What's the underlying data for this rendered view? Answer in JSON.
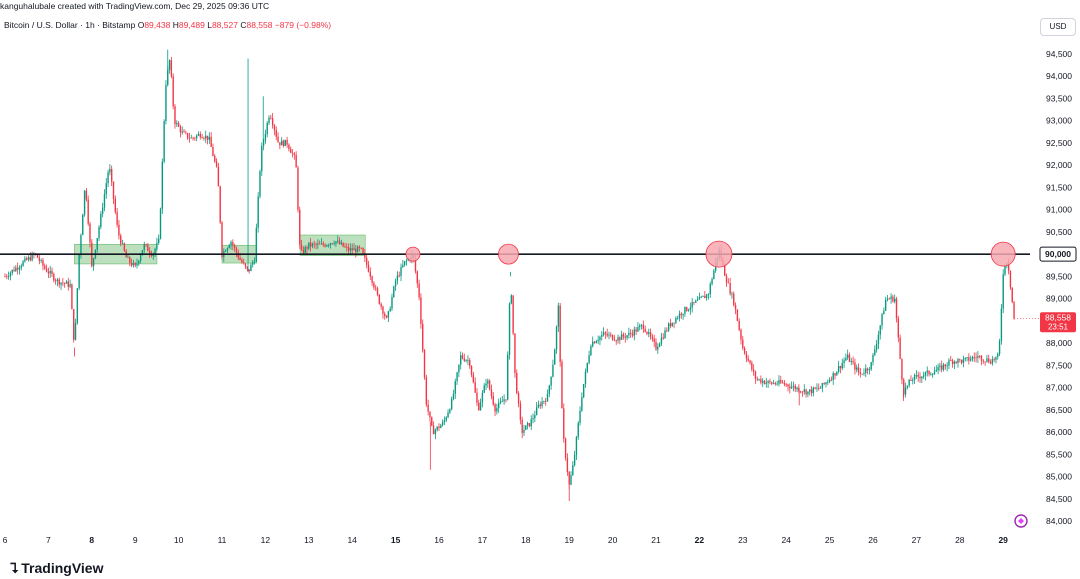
{
  "header": {
    "attribution": "kanguhalubale created with TradingView.com, Dec 29, 2025 09:36 UTC"
  },
  "symbol": {
    "name": "Bitcoin / U.S. Dollar · 1h · Bitstamp",
    "o_label": "O",
    "o_value": "89,438",
    "h_label": "H",
    "h_value": "89,489",
    "l_label": "L",
    "l_value": "88,527",
    "c_label": "C",
    "c_value": "88,558",
    "change": "−879 (−0.98%)"
  },
  "currency": "USD",
  "last_price": {
    "value": "88,558",
    "countdown": "23:51"
  },
  "level_label": "90,000",
  "logo_text": "TradingView",
  "colors": {
    "up": "#089981",
    "down": "#f23645",
    "level_line": "#131722",
    "marker_fill": "#f7a8b0",
    "marker_stroke": "#f23645",
    "zone_fill": "#a5d6a7",
    "zone_stroke": "#66bb6a",
    "axis_text": "#131722",
    "grid": "#f0f3fa",
    "price_tag": "#f23645",
    "level_tag_bg": "#ffffff"
  },
  "chart_data": {
    "type": "candlestick",
    "title": "Bitcoin / U.S. Dollar · 1h · Bitstamp",
    "y_ticks": [
      "94,500",
      "94,000",
      "93,500",
      "93,000",
      "92,500",
      "92,000",
      "91,500",
      "91,000",
      "90,500",
      "90,000",
      "89,500",
      "89,000",
      "88,500",
      "88,000",
      "87,500",
      "87,000",
      "86,500",
      "86,000",
      "85,500",
      "85,000",
      "84,500",
      "84,000"
    ],
    "x_ticks": [
      {
        "label": "6",
        "bold": false
      },
      {
        "label": "7",
        "bold": false
      },
      {
        "label": "8",
        "bold": true
      },
      {
        "label": "9",
        "bold": false
      },
      {
        "label": "10",
        "bold": false
      },
      {
        "label": "11",
        "bold": false
      },
      {
        "label": "12",
        "bold": false
      },
      {
        "label": "13",
        "bold": false
      },
      {
        "label": "14",
        "bold": false
      },
      {
        "label": "15",
        "bold": true
      },
      {
        "label": "16",
        "bold": false
      },
      {
        "label": "17",
        "bold": false
      },
      {
        "label": "18",
        "bold": false
      },
      {
        "label": "19",
        "bold": false
      },
      {
        "label": "20",
        "bold": false
      },
      {
        "label": "21",
        "bold": false
      },
      {
        "label": "22",
        "bold": true
      },
      {
        "label": "23",
        "bold": false
      },
      {
        "label": "24",
        "bold": false
      },
      {
        "label": "25",
        "bold": false
      },
      {
        "label": "26",
        "bold": false
      },
      {
        "label": "27",
        "bold": false
      },
      {
        "label": "28",
        "bold": false
      },
      {
        "label": "29",
        "bold": true
      }
    ],
    "ylim": [
      84000,
      94500
    ],
    "level": 90000,
    "consolidation_zones": [
      {
        "from_day": 7.6,
        "to_day": 9.5,
        "low": 89780,
        "high": 90220
      },
      {
        "from_day": 11.0,
        "to_day": 11.8,
        "low": 89800,
        "high": 90200
      },
      {
        "from_day": 12.8,
        "to_day": 14.3,
        "low": 89970,
        "high": 90430
      }
    ],
    "rejection_markers": [
      {
        "day": 15.4,
        "price": 90000
      },
      {
        "day": 17.6,
        "price": 90000
      },
      {
        "day": 22.45,
        "price": 90000
      },
      {
        "day": 29.0,
        "price": 90000
      }
    ],
    "path": [
      [
        6.0,
        89500
      ],
      [
        6.4,
        89800
      ],
      [
        6.7,
        90000
      ],
      [
        6.9,
        89700
      ],
      [
        7.2,
        89400
      ],
      [
        7.5,
        89300
      ],
      [
        7.6,
        87900
      ],
      [
        7.7,
        89900
      ],
      [
        7.85,
        91600
      ],
      [
        8.0,
        89700
      ],
      [
        8.2,
        90800
      ],
      [
        8.4,
        92000
      ],
      [
        8.6,
        90500
      ],
      [
        8.8,
        89900
      ],
      [
        9.0,
        89700
      ],
      [
        9.2,
        90200
      ],
      [
        9.4,
        90000
      ],
      [
        9.55,
        90300
      ],
      [
        9.7,
        93800
      ],
      [
        9.8,
        94400
      ],
      [
        9.9,
        93000
      ],
      [
        10.1,
        92700
      ],
      [
        10.3,
        92600
      ],
      [
        10.5,
        92700
      ],
      [
        10.7,
        92600
      ],
      [
        10.9,
        91800
      ],
      [
        11.0,
        90000
      ],
      [
        11.2,
        90300
      ],
      [
        11.4,
        89900
      ],
      [
        11.6,
        89600
      ],
      [
        11.75,
        89900
      ],
      [
        11.9,
        92300
      ],
      [
        12.1,
        93200
      ],
      [
        12.3,
        92500
      ],
      [
        12.5,
        92500
      ],
      [
        12.7,
        92100
      ],
      [
        12.8,
        90000
      ],
      [
        13.0,
        90200
      ],
      [
        13.3,
        90200
      ],
      [
        13.6,
        90300
      ],
      [
        13.9,
        90100
      ],
      [
        14.2,
        90100
      ],
      [
        14.4,
        89600
      ],
      [
        14.6,
        89000
      ],
      [
        14.8,
        88500
      ],
      [
        15.0,
        89400
      ],
      [
        15.2,
        89800
      ],
      [
        15.4,
        90000
      ],
      [
        15.55,
        89000
      ],
      [
        15.7,
        86700
      ],
      [
        15.85,
        86000
      ],
      [
        16.1,
        86200
      ],
      [
        16.3,
        86700
      ],
      [
        16.5,
        87700
      ],
      [
        16.7,
        87600
      ],
      [
        16.9,
        86500
      ],
      [
        17.1,
        87200
      ],
      [
        17.3,
        86500
      ],
      [
        17.55,
        86800
      ],
      [
        17.65,
        89500
      ],
      [
        17.75,
        87300
      ],
      [
        17.9,
        86000
      ],
      [
        18.1,
        86200
      ],
      [
        18.3,
        86600
      ],
      [
        18.5,
        86800
      ],
      [
        18.65,
        87700
      ],
      [
        18.75,
        88800
      ],
      [
        18.85,
        86000
      ],
      [
        19.0,
        84800
      ],
      [
        19.1,
        85300
      ],
      [
        19.3,
        86900
      ],
      [
        19.5,
        88000
      ],
      [
        19.8,
        88200
      ],
      [
        20.1,
        88100
      ],
      [
        20.4,
        88200
      ],
      [
        20.7,
        88400
      ],
      [
        21.0,
        87900
      ],
      [
        21.3,
        88400
      ],
      [
        21.6,
        88700
      ],
      [
        21.9,
        88900
      ],
      [
        22.2,
        89100
      ],
      [
        22.45,
        90100
      ],
      [
        22.6,
        89500
      ],
      [
        22.8,
        88900
      ],
      [
        23.0,
        87900
      ],
      [
        23.3,
        87200
      ],
      [
        23.6,
        87100
      ],
      [
        23.9,
        87100
      ],
      [
        24.2,
        87000
      ],
      [
        24.5,
        86900
      ],
      [
        24.8,
        87000
      ],
      [
        25.1,
        87300
      ],
      [
        25.4,
        87700
      ],
      [
        25.7,
        87300
      ],
      [
        25.95,
        87500
      ],
      [
        26.1,
        88100
      ],
      [
        26.3,
        89000
      ],
      [
        26.5,
        89000
      ],
      [
        26.6,
        87900
      ],
      [
        26.7,
        86900
      ],
      [
        26.9,
        87200
      ],
      [
        27.2,
        87300
      ],
      [
        27.5,
        87400
      ],
      [
        27.8,
        87600
      ],
      [
        28.1,
        87600
      ],
      [
        28.4,
        87700
      ],
      [
        28.7,
        87600
      ],
      [
        28.9,
        87700
      ],
      [
        29.0,
        89600
      ],
      [
        29.1,
        89900
      ],
      [
        29.2,
        89000
      ],
      [
        29.25,
        88558
      ]
    ]
  }
}
